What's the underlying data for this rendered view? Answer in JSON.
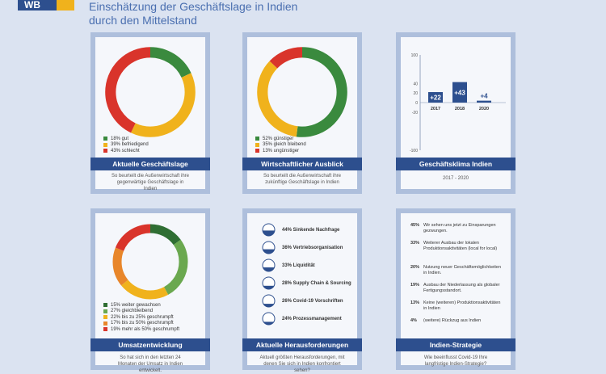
{
  "header": {
    "logo": "WB",
    "title_line1": "Einschätzung der Geschäftslage in Indien",
    "title_line2": "durch den Mittelstand"
  },
  "colors": {
    "green": "#3a8a3e",
    "yellow": "#f0b21c",
    "red": "#d9342b",
    "navy": "#2d4f8e"
  },
  "chart_data": [
    {
      "type": "pie",
      "title": "Aktuelle Geschäftslage",
      "subtitle": "So beurteilt die Außenwirtschaft ihre gegenwärtige Geschäftslage in Indien",
      "slices": [
        {
          "label": "18% gut",
          "value": 18,
          "color": "#3a8a3e"
        },
        {
          "label": "39% befriedigend",
          "value": 39,
          "color": "#f0b21c"
        },
        {
          "label": "43% schlecht",
          "value": 43,
          "color": "#d9342b"
        }
      ]
    },
    {
      "type": "pie",
      "title": "Wirtschaftlicher Ausblick",
      "subtitle": "So beurteilt die Außenwirtschaft ihre zukünftige Geschäftslage in Indien",
      "slices": [
        {
          "label": "52% günstiger",
          "value": 52,
          "color": "#3a8a3e"
        },
        {
          "label": "35% gleich bleibend",
          "value": 35,
          "color": "#f0b21c"
        },
        {
          "label": "13% ungünstiger",
          "value": 13,
          "color": "#d9342b"
        }
      ]
    },
    {
      "type": "bar",
      "title": "Geschäftsklima Indien",
      "subtitle": "2017 - 2020",
      "categories": [
        "2017",
        "2018",
        "2020"
      ],
      "values": [
        22,
        43,
        4
      ],
      "value_labels": [
        "+22",
        "+43",
        "+4"
      ],
      "ylim": [
        -100,
        100
      ],
      "yticks": [
        100,
        40,
        20,
        0,
        -20,
        -100
      ],
      "color": "#2d4f8e"
    },
    {
      "type": "pie",
      "title": "Umsatzentwicklung",
      "subtitle": "So hat sich in den letzten 24 Monaten der Umsatz in Indien entwickelt.",
      "slices": [
        {
          "label": "15% weiter gewachsen",
          "value": 15,
          "color": "#2f6e33"
        },
        {
          "label": "27% gleichbleibend",
          "value": 27,
          "color": "#6aa84f"
        },
        {
          "label": "22% bis zu 25% geschrumpft",
          "value": 22,
          "color": "#f0b21c"
        },
        {
          "label": "17% bis zu 50% geschrumpft",
          "value": 17,
          "color": "#e8862a"
        },
        {
          "label": "19% mehr als 50% geschrumpft",
          "value": 19,
          "color": "#d9342b"
        }
      ]
    },
    {
      "type": "table",
      "title": "Aktuelle Herausforderungen",
      "subtitle": "Aktuell größten Herausforderungen, mit denen Sie sich in Indien konfrontiert sehen?",
      "rows": [
        {
          "label": "44% Sinkende Nachfrage",
          "value": 44
        },
        {
          "label": "36% Vertriebsorganisation",
          "value": 36
        },
        {
          "label": "33% Liquidität",
          "value": 33
        },
        {
          "label": "28% Supply Chain & Sourcing",
          "value": 28
        },
        {
          "label": "26% Covid-19 Vorschriften",
          "value": 26
        },
        {
          "label": "24% Prozessmanagement",
          "value": 24
        }
      ]
    },
    {
      "type": "table",
      "title": "Indien-Strategie",
      "subtitle": "Wie beeinflusst Covid-19 Ihre langfristige Indien-Strategie?",
      "rows": [
        {
          "pct": "45%",
          "text": "Wir sehen uns jetzt zu Einsparungen gezwungen."
        },
        {
          "pct": "33%",
          "text": "Weiterer Ausbau der lokalen Produktionsaktivitäten (local for local)"
        },
        {
          "pct": "20%",
          "text": "Nutzung neuer Geschäftsmöglichkeiten in Indien."
        },
        {
          "pct": "19%",
          "text": "Ausbau der Niederlassung als globaler Fertigungsstandort."
        },
        {
          "pct": "13%",
          "text": "Keine (weiteren) Produktionsaktivitäten in Indien"
        },
        {
          "pct": "4%",
          "text": "(weitere) Rückzug aus Indien"
        }
      ]
    }
  ]
}
